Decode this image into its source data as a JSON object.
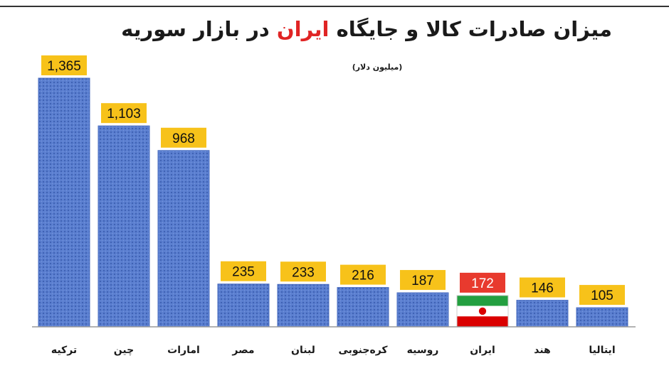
{
  "chart_data": {
    "type": "bar",
    "title_parts": [
      {
        "text": "میزان صادرات کالا و جایگاه ",
        "emphasis": false
      },
      {
        "text": "ایران",
        "emphasis": true
      },
      {
        "text": " در بازار سوریه",
        "emphasis": false
      }
    ],
    "subtitle": "(میلیون دلار)",
    "categories": [
      "ترکیه",
      "چین",
      "امارات",
      "مصر",
      "لبنان",
      "کره‌جنوبی",
      "روسیه",
      "ایران",
      "هند",
      "ایتالیا"
    ],
    "values": [
      1365,
      1103,
      968,
      235,
      233,
      216,
      187,
      172,
      146,
      105
    ],
    "value_labels": [
      "1,365",
      "1,103",
      "968",
      "235",
      "233",
      "216",
      "187",
      "172",
      "146",
      "105"
    ],
    "highlight_category": "ایران",
    "ylim": [
      0,
      1400
    ],
    "grid": false,
    "legend": "none",
    "colors": {
      "bar": "#5b7fd0",
      "bar_texture": "#3a5aa8",
      "label_box": "#f7c21a",
      "highlight_label_box": "#e83a2e",
      "highlight_label_text": "#ffffff",
      "label_text": "#111111",
      "flag_green": "#239f40",
      "flag_white": "#ffffff",
      "flag_red": "#da0000",
      "title_emphasis": "#e02424",
      "title_text": "#1a1a1a"
    }
  }
}
